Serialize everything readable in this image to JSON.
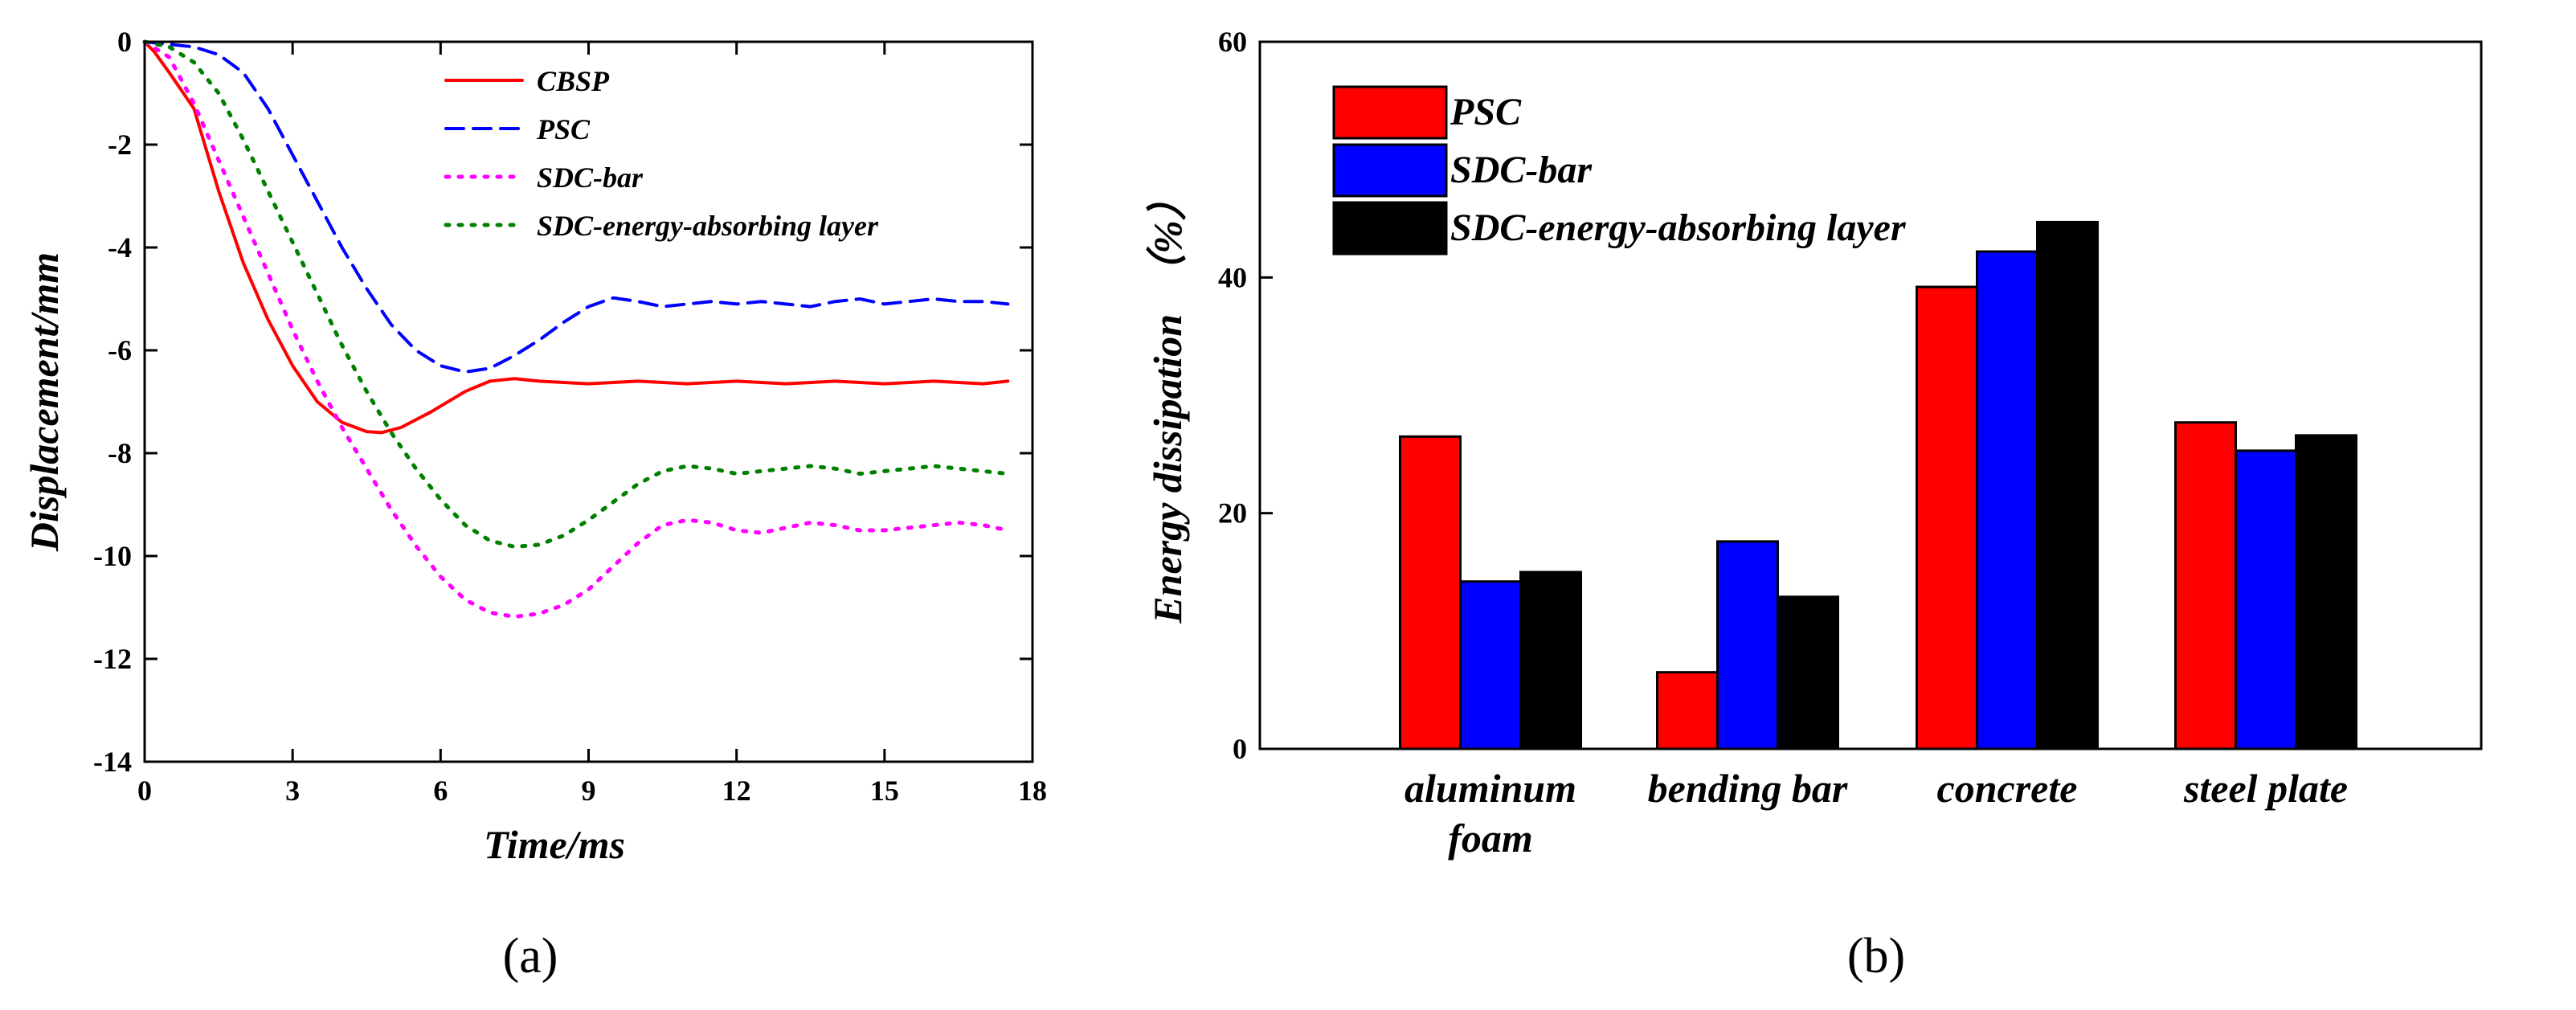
{
  "panel_labels": {
    "a": "(a)",
    "b": "(b)"
  },
  "chart_data": [
    {
      "type": "line",
      "title": "",
      "xlabel": "Time/ms",
      "ylabel": "Displacement/mm",
      "xlim": [
        0,
        18
      ],
      "ylim": [
        -14,
        0
      ],
      "xticks": [
        "0",
        "3",
        "6",
        "9",
        "12",
        "15",
        "18"
      ],
      "yticks": [
        "0",
        "-2",
        "-4",
        "-6",
        "-8",
        "-10",
        "-12",
        "-14"
      ],
      "legend_position": "top-right",
      "series": [
        {
          "name": "CBSP",
          "color": "#ff0000",
          "style": "solid",
          "x": [
            0,
            0.2,
            0.5,
            1.0,
            1.5,
            2.0,
            2.5,
            3.0,
            3.5,
            4.0,
            4.5,
            4.8,
            5.2,
            5.8,
            6.5,
            7.0,
            7.5,
            8.0,
            9.0,
            10.0,
            11.0,
            12.0,
            13.0,
            14.0,
            15.0,
            16.0,
            17.0,
            17.5
          ],
          "y": [
            0,
            -0.2,
            -0.6,
            -1.3,
            -2.9,
            -4.3,
            -5.4,
            -6.3,
            -7.0,
            -7.4,
            -7.58,
            -7.6,
            -7.5,
            -7.2,
            -6.8,
            -6.6,
            -6.55,
            -6.6,
            -6.65,
            -6.6,
            -6.65,
            -6.6,
            -6.65,
            -6.6,
            -6.65,
            -6.6,
            -6.65,
            -6.6
          ]
        },
        {
          "name": "PSC",
          "color": "#0000ff",
          "style": "dashed",
          "x": [
            0,
            0.5,
            1.0,
            1.5,
            2.0,
            2.5,
            3.0,
            3.5,
            4.0,
            4.5,
            5.0,
            5.5,
            6.0,
            6.5,
            7.0,
            7.5,
            8.0,
            8.5,
            9.0,
            9.5,
            10.0,
            10.5,
            11.0,
            11.5,
            12.0,
            12.5,
            13.0,
            13.5,
            14.0,
            14.5,
            15.0,
            15.5,
            16.0,
            16.5,
            17.0,
            17.5
          ],
          "y": [
            0,
            -0.05,
            -0.1,
            -0.25,
            -0.6,
            -1.3,
            -2.2,
            -3.1,
            -4.0,
            -4.8,
            -5.5,
            -6.0,
            -6.3,
            -6.42,
            -6.35,
            -6.1,
            -5.8,
            -5.45,
            -5.15,
            -4.98,
            -5.05,
            -5.15,
            -5.1,
            -5.05,
            -5.1,
            -5.05,
            -5.1,
            -5.15,
            -5.05,
            -5.0,
            -5.1,
            -5.05,
            -5.0,
            -5.05,
            -5.05,
            -5.1
          ]
        },
        {
          "name": "SDC-bar",
          "color": "#ff00ff",
          "style": "dotted",
          "x": [
            0,
            0.5,
            1.0,
            1.5,
            2.0,
            2.5,
            3.0,
            3.5,
            4.0,
            4.5,
            5.0,
            5.5,
            6.0,
            6.5,
            7.0,
            7.5,
            8.0,
            8.5,
            9.0,
            9.5,
            10.0,
            10.5,
            11.0,
            11.5,
            12.0,
            12.5,
            13.0,
            13.5,
            14.0,
            14.5,
            15.0,
            15.5,
            16.0,
            16.5,
            17.0,
            17.5
          ],
          "y": [
            0,
            -0.3,
            -1.2,
            -2.3,
            -3.4,
            -4.5,
            -5.6,
            -6.6,
            -7.5,
            -8.3,
            -9.1,
            -9.8,
            -10.4,
            -10.85,
            -11.1,
            -11.18,
            -11.12,
            -10.95,
            -10.65,
            -10.2,
            -9.75,
            -9.4,
            -9.3,
            -9.35,
            -9.5,
            -9.55,
            -9.45,
            -9.35,
            -9.4,
            -9.5,
            -9.5,
            -9.45,
            -9.4,
            -9.35,
            -9.4,
            -9.5
          ]
        },
        {
          "name": "SDC-energy-absorbing layer",
          "color": "#008000",
          "style": "dotted",
          "x": [
            0,
            0.5,
            1.0,
            1.5,
            2.0,
            2.5,
            3.0,
            3.5,
            4.0,
            4.5,
            5.0,
            5.5,
            6.0,
            6.5,
            7.0,
            7.5,
            8.0,
            8.5,
            9.0,
            9.5,
            10.0,
            10.5,
            11.0,
            11.5,
            12.0,
            12.5,
            13.0,
            13.5,
            14.0,
            14.5,
            15.0,
            15.5,
            16.0,
            16.5,
            17.0,
            17.5
          ],
          "y": [
            0,
            -0.1,
            -0.4,
            -1.0,
            -1.9,
            -2.9,
            -3.9,
            -4.9,
            -5.9,
            -6.8,
            -7.6,
            -8.3,
            -8.9,
            -9.4,
            -9.7,
            -9.82,
            -9.78,
            -9.6,
            -9.3,
            -8.95,
            -8.6,
            -8.35,
            -8.25,
            -8.3,
            -8.4,
            -8.35,
            -8.3,
            -8.25,
            -8.3,
            -8.4,
            -8.35,
            -8.3,
            -8.25,
            -8.3,
            -8.35,
            -8.4
          ]
        }
      ]
    },
    {
      "type": "bar",
      "title": "",
      "xlabel": "",
      "ylabel": "Energy dissipation  （%）",
      "ylim": [
        0,
        60
      ],
      "yticks": [
        "0",
        "20",
        "40",
        "60"
      ],
      "categories": [
        "aluminum foam",
        "bending bar",
        "concrete",
        "steel plate"
      ],
      "category_lines": [
        [
          "aluminum",
          "foam"
        ],
        [
          "bending bar"
        ],
        [
          "concrete"
        ],
        [
          "steel plate"
        ]
      ],
      "legend_position": "top-left",
      "series": [
        {
          "name": "PSC",
          "color": "#ff0000",
          "values": [
            26.5,
            6.5,
            39.2,
            27.7
          ]
        },
        {
          "name": "SDC-bar",
          "color": "#0000ff",
          "values": [
            14.2,
            17.6,
            42.2,
            25.3
          ]
        },
        {
          "name": "SDC-energy-absorbing layer",
          "color": "#000000",
          "values": [
            15.0,
            12.9,
            44.7,
            26.6
          ]
        }
      ]
    }
  ]
}
